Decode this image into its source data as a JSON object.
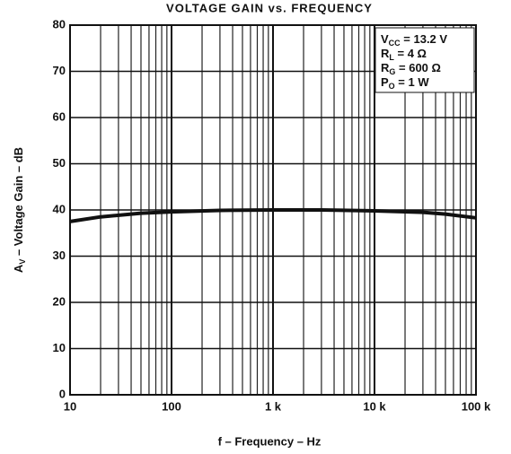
{
  "chart_data": {
    "type": "line",
    "title": "VOLTAGE GAIN vs. FREQUENCY",
    "x_label": "f – Frequency – Hz",
    "y_label": {
      "base": "A",
      "sub": "V",
      "text": " – Voltage Gain – dB"
    },
    "annotations": [
      {
        "base": "V",
        "sub": "CC",
        "text": " = 13.2 V"
      },
      {
        "base": "R",
        "sub": "L",
        "text": " = 4 Ω"
      },
      {
        "base": "R",
        "sub": "G",
        "text": " = 600 Ω"
      },
      {
        "base": "P",
        "sub": "O",
        "text": " = 1 W"
      }
    ],
    "x_log": true,
    "grid": true,
    "xlim": [
      10,
      100000
    ],
    "ylim": [
      0,
      80
    ],
    "xticks": [
      10,
      100,
      {
        "value": 1000,
        "label": "1 k"
      },
      {
        "value": 10000,
        "label": "10 k"
      },
      {
        "value": 100000,
        "label": "100 k"
      }
    ],
    "yticks": [
      0,
      10,
      20,
      30,
      40,
      50,
      60,
      70,
      80
    ],
    "series": [
      {
        "name": "Voltage Gain",
        "color": "#111111",
        "x": [
          10,
          20,
          50,
          100,
          300,
          1000,
          3000,
          10000,
          30000,
          50000,
          100000
        ],
        "values": [
          37.5,
          38.5,
          39.3,
          39.6,
          39.9,
          40,
          40,
          39.8,
          39.5,
          39.1,
          38.3
        ]
      }
    ]
  }
}
